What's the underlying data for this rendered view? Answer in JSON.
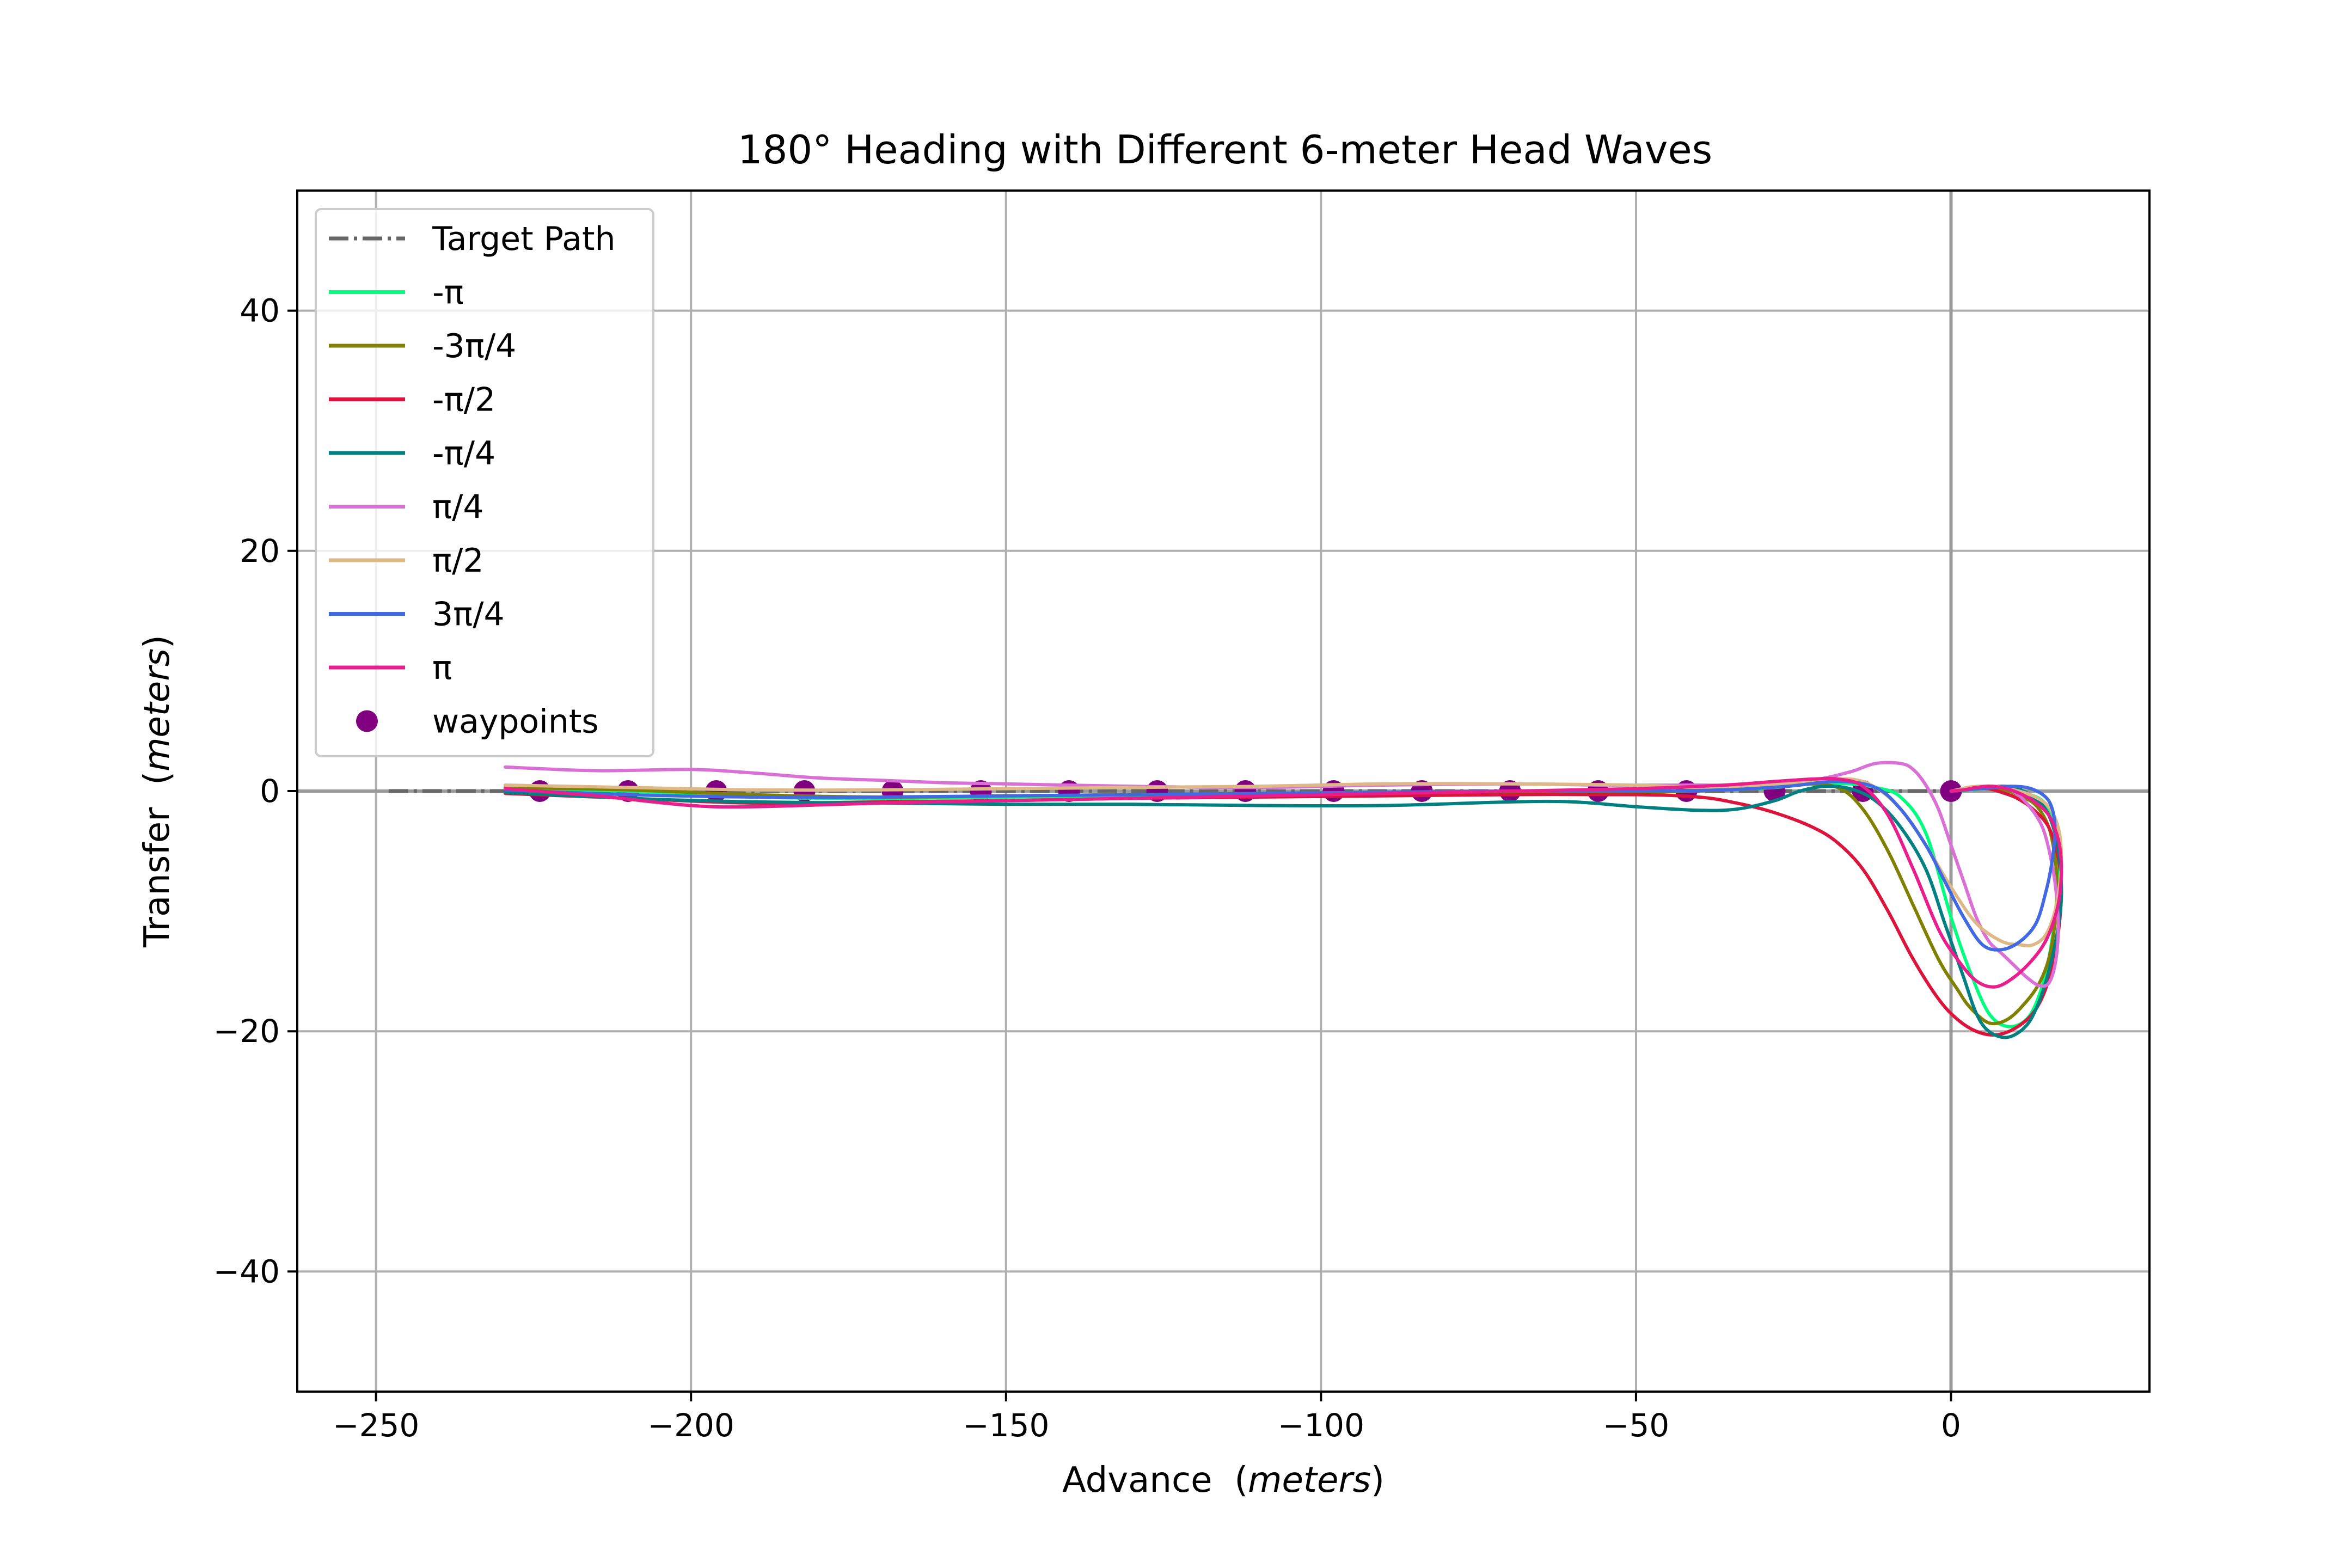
{
  "chart_data": {
    "type": "line",
    "title": "180° Heading with Different 6-meter Head Waves",
    "xlabel": "Advance",
    "xlabel_unit": "meters",
    "ylabel": "Transfer",
    "ylabel_unit": "meters",
    "xlim": [
      -262.5,
      31.5
    ],
    "ylim": [
      -50,
      50
    ],
    "xticks": [
      -250,
      -200,
      -150,
      -100,
      -50,
      0
    ],
    "yticks": [
      -40,
      -20,
      0,
      20,
      40
    ],
    "xtick_labels": [
      "−250",
      "−200",
      "−150",
      "−100",
      "−50",
      "0"
    ],
    "ytick_labels": [
      "−40",
      "−20",
      "0",
      "20",
      "40"
    ],
    "grid": true,
    "legend_position": "upper-left",
    "target_path": {
      "name": "Target Path",
      "color": "#666666",
      "x": [
        -248,
        0
      ],
      "y": [
        0,
        0
      ]
    },
    "series": [
      {
        "name": "-π",
        "color": "#00ff7f",
        "x": [
          -229.5,
          -210,
          -190,
          -170,
          -150,
          -130,
          -110,
          -90,
          -70,
          -50,
          -36,
          -28,
          -22,
          -16,
          -12,
          -8,
          -4,
          0,
          3,
          6,
          9,
          12,
          14,
          15.5,
          16.5,
          17,
          16.8,
          16,
          14.5,
          12,
          9.5,
          7,
          5,
          3,
          1.5,
          0
        ],
        "y": [
          0.2,
          0.0,
          -0.5,
          -0.6,
          -0.5,
          -0.4,
          -0.3,
          -0.3,
          -0.2,
          -0.1,
          0.1,
          0.3,
          0.6,
          0.6,
          0.3,
          -0.5,
          -3.5,
          -10.5,
          -15.0,
          -18.5,
          -19.6,
          -19.0,
          -17.0,
          -14.0,
          -10.5,
          -7.0,
          -4.5,
          -2.0,
          -0.8,
          -0.2,
          0.1,
          0.2,
          0.2,
          0.1,
          0.05,
          0
        ]
      },
      {
        "name": "-3π/4",
        "color": "#808000",
        "x": [
          -229.5,
          -210,
          -190,
          -170,
          -150,
          -130,
          -110,
          -90,
          -70,
          -50,
          -36,
          -30,
          -24,
          -18,
          -14,
          -10,
          -6,
          -2,
          1,
          3,
          6,
          9,
          12,
          14,
          15.5,
          16.5,
          16.8,
          16.5,
          15.5,
          13.5,
          11,
          8.5,
          6,
          4,
          2,
          0
        ],
        "y": [
          0.3,
          0.1,
          -0.3,
          -0.5,
          -0.4,
          -0.3,
          -0.2,
          -0.2,
          -0.1,
          -0.1,
          0.1,
          0.4,
          0.6,
          0.3,
          -1.5,
          -5.0,
          -9.5,
          -14.0,
          -16.5,
          -18.0,
          -19.3,
          -19.0,
          -17.5,
          -16.0,
          -14.0,
          -11.0,
          -8.0,
          -5.5,
          -3.0,
          -1.2,
          -0.4,
          0.1,
          0.3,
          0.3,
          0.1,
          0
        ]
      },
      {
        "name": "-π/2",
        "color": "#dc143c",
        "x": [
          -229.5,
          -210,
          -190,
          -170,
          -150,
          -130,
          -110,
          -90,
          -70,
          -50,
          -40,
          -34,
          -28,
          -22,
          -18,
          -14,
          -10,
          -6,
          -2,
          1,
          4,
          7,
          10,
          13,
          15,
          16.5,
          17.3,
          17.5,
          17,
          15.5,
          13,
          10.5,
          8,
          6,
          4,
          2,
          0
        ],
        "y": [
          -0.2,
          -0.6,
          -1.0,
          -0.9,
          -0.8,
          -0.6,
          -0.5,
          -0.4,
          -0.3,
          -0.3,
          -0.5,
          -1.0,
          -1.8,
          -3.0,
          -4.3,
          -6.5,
          -10.0,
          -14.0,
          -17.3,
          -19.0,
          -20.0,
          -20.3,
          -19.8,
          -18.5,
          -16.5,
          -13.5,
          -10.5,
          -8.0,
          -5.5,
          -3.0,
          -1.5,
          -0.6,
          -0.1,
          0.2,
          0.2,
          0.1,
          0
        ]
      },
      {
        "name": "-π/4",
        "color": "#008080",
        "x": [
          -229.5,
          -210,
          -190,
          -170,
          -150,
          -130,
          -110,
          -90,
          -70,
          -60,
          -50,
          -40,
          -34,
          -28,
          -24,
          -20,
          -16,
          -12,
          -8,
          -4,
          -1,
          2,
          4,
          6,
          9,
          12,
          14,
          15.5,
          16.8,
          17.5,
          17.3,
          16.5,
          15,
          12.5,
          10,
          7.5,
          5,
          3,
          1.5,
          0
        ],
        "y": [
          -0.1,
          -0.6,
          -0.9,
          -1.0,
          -1.1,
          -1.1,
          -1.2,
          -1.2,
          -0.9,
          -0.9,
          -1.3,
          -1.6,
          -1.5,
          -0.8,
          0.0,
          0.4,
          0.2,
          -0.8,
          -3.0,
          -6.5,
          -11.0,
          -15.5,
          -18.5,
          -20.0,
          -20.5,
          -19.5,
          -17.5,
          -15.0,
          -12.0,
          -9.0,
          -6.0,
          -3.5,
          -1.5,
          -0.3,
          0.3,
          0.4,
          0.3,
          0.2,
          0.1,
          0
        ]
      },
      {
        "name": "π/4",
        "color": "#da70d6",
        "x": [
          -229.5,
          -215,
          -200,
          -190,
          -180,
          -170,
          -160,
          -150,
          -130,
          -110,
          -90,
          -70,
          -55,
          -40,
          -30,
          -22,
          -16,
          -12,
          -8,
          -6,
          -4,
          -2,
          0,
          2,
          4,
          6,
          8,
          10,
          12,
          14,
          15.5,
          16.5,
          17,
          16.8,
          16,
          14.5,
          12,
          9.5,
          7,
          4.5,
          2.5,
          1,
          0
        ],
        "y": [
          2.0,
          1.7,
          1.8,
          1.5,
          1.1,
          0.9,
          0.7,
          0.6,
          0.4,
          0.3,
          0.5,
          0.6,
          0.5,
          0.5,
          0.5,
          0.9,
          1.6,
          2.3,
          2.3,
          1.8,
          0.5,
          -1.5,
          -4.5,
          -7.5,
          -10.5,
          -12.5,
          -13.5,
          -14.5,
          -15.5,
          -16.2,
          -16.0,
          -14.5,
          -12.0,
          -9.0,
          -6.0,
          -3.0,
          -1.0,
          0.1,
          0.4,
          0.3,
          0.2,
          0.1,
          0
        ]
      },
      {
        "name": "π/2",
        "color": "#deb887",
        "x": [
          -229.5,
          -210,
          -190,
          -170,
          -150,
          -130,
          -110,
          -90,
          -70,
          -50,
          -40,
          -30,
          -22,
          -16,
          -12,
          -8,
          -4,
          0,
          4,
          8,
          11,
          13,
          15,
          16.5,
          17.3,
          17.5,
          17,
          15.5,
          13,
          10,
          7,
          4.5,
          2.5,
          1,
          0
        ],
        "y": [
          0.5,
          0.3,
          0.1,
          0.1,
          0.2,
          0.3,
          0.4,
          0.6,
          0.6,
          0.5,
          0.3,
          0.5,
          0.8,
          1.0,
          0.3,
          -1.5,
          -4.5,
          -8.0,
          -11.0,
          -12.5,
          -12.8,
          -12.8,
          -12.0,
          -10.0,
          -7.5,
          -5.0,
          -3.0,
          -1.3,
          -0.4,
          0.1,
          0.4,
          0.4,
          0.3,
          0.1,
          0
        ]
      },
      {
        "name": "3π/4",
        "color": "#4169e1",
        "x": [
          -229.5,
          -210,
          -190,
          -170,
          -150,
          -130,
          -110,
          -90,
          -70,
          -50,
          -36,
          -26,
          -18,
          -12,
          -8,
          -4,
          -1,
          2,
          5,
          8,
          11,
          13.5,
          15,
          16,
          16.5,
          16.3,
          15.5,
          14,
          12,
          9.5,
          7,
          4.5,
          2.5,
          1,
          0
        ],
        "y": [
          0.1,
          -0.3,
          -0.5,
          -0.5,
          -0.4,
          -0.3,
          -0.2,
          -0.1,
          0.0,
          0.0,
          0.1,
          0.4,
          0.8,
          0.3,
          -1.5,
          -4.5,
          -7.5,
          -10.5,
          -12.8,
          -13.2,
          -12.5,
          -11.0,
          -8.5,
          -6.0,
          -3.5,
          -2.0,
          -0.8,
          -0.1,
          0.3,
          0.4,
          0.3,
          0.2,
          0.1,
          0.05,
          0
        ]
      },
      {
        "name": "π",
        "color": "#e91e8c",
        "x": [
          -229.5,
          -215,
          -200,
          -190,
          -170,
          -150,
          -130,
          -110,
          -90,
          -70,
          -50,
          -36,
          -28,
          -22,
          -18,
          -14,
          -10,
          -6,
          -2,
          1,
          4,
          7,
          10,
          13,
          15,
          16.5,
          17.3,
          17.5,
          17,
          15.5,
          13,
          10.5,
          8,
          6,
          4,
          2,
          0
        ],
        "y": [
          0.2,
          -0.4,
          -1.2,
          -1.3,
          -1.0,
          -0.8,
          -0.6,
          -0.4,
          -0.2,
          0.0,
          0.2,
          0.5,
          0.8,
          1.0,
          1.0,
          0.4,
          -2.0,
          -6.5,
          -11.5,
          -14.0,
          -15.8,
          -16.3,
          -15.5,
          -14.0,
          -12.5,
          -10.5,
          -8.5,
          -6.0,
          -4.0,
          -2.0,
          -0.8,
          -0.1,
          0.3,
          0.4,
          0.3,
          0.1,
          0
        ]
      }
    ],
    "waypoints": {
      "name": "waypoints",
      "color": "#800080",
      "x": [
        -224,
        -210,
        -196,
        -182,
        -168,
        -154,
        -140,
        -126,
        -112,
        -98,
        -84,
        -70,
        -56,
        -42,
        -28,
        -14,
        0
      ],
      "y": [
        0,
        0,
        0,
        0,
        0,
        0,
        0,
        0,
        0,
        0,
        0,
        0,
        0,
        0,
        0,
        0,
        0
      ]
    }
  }
}
